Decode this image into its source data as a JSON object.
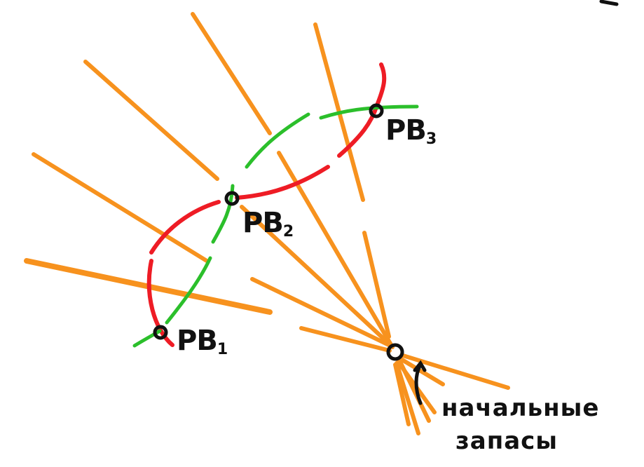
{
  "points": [
    {
      "label": "PB",
      "subscript": "1"
    },
    {
      "label": "PB",
      "subscript": "2"
    },
    {
      "label": "PB",
      "subscript": "3"
    }
  ],
  "caption": {
    "line1": "начальные",
    "line2": "запасы"
  },
  "colors": {
    "orange": "#f7921e",
    "red": "#ee1c25",
    "green": "#2bbf2b",
    "ink": "#111111"
  }
}
